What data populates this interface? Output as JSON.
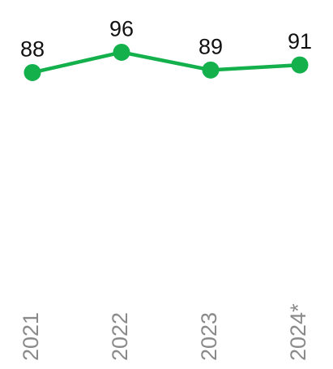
{
  "chart_data": {
    "type": "line",
    "categories": [
      "2021",
      "2022",
      "2023",
      "2024*"
    ],
    "values": [
      88,
      96,
      89,
      91
    ],
    "color": "#13b04c",
    "ylim": [
      0,
      100
    ]
  }
}
